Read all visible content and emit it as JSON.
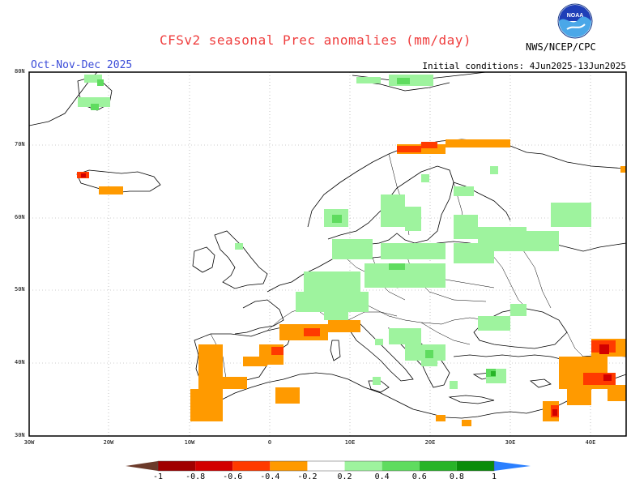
{
  "title": "CFSv2 seasonal Prec anomalies (mm/day)",
  "period": "Oct-Nov-Dec 2025",
  "initial_conditions": "Initial conditions: 4Jun2025-13Jun2025",
  "agency": "NWS/NCEP/CPC",
  "logo_text": "NOAA",
  "map": {
    "lat_labels": [
      "80N",
      "70N",
      "60N",
      "50N",
      "40N",
      "30N"
    ],
    "lon_labels": [
      "30W",
      "20W",
      "10W",
      "0",
      "10E",
      "20E",
      "30E",
      "40E"
    ]
  },
  "colorbar": {
    "labels": [
      "-1",
      "-0.8",
      "-0.6",
      "-0.4",
      "-0.2",
      "0.2",
      "0.4",
      "0.6",
      "0.8",
      "1"
    ],
    "colors": [
      "#6b3a2a",
      "#a00000",
      "#d20000",
      "#ff3a00",
      "#ff9a00",
      "#ffffff",
      "#9ef39e",
      "#5fdc5f",
      "#28b428",
      "#0a8c0a",
      "#2a7fff"
    ]
  }
}
